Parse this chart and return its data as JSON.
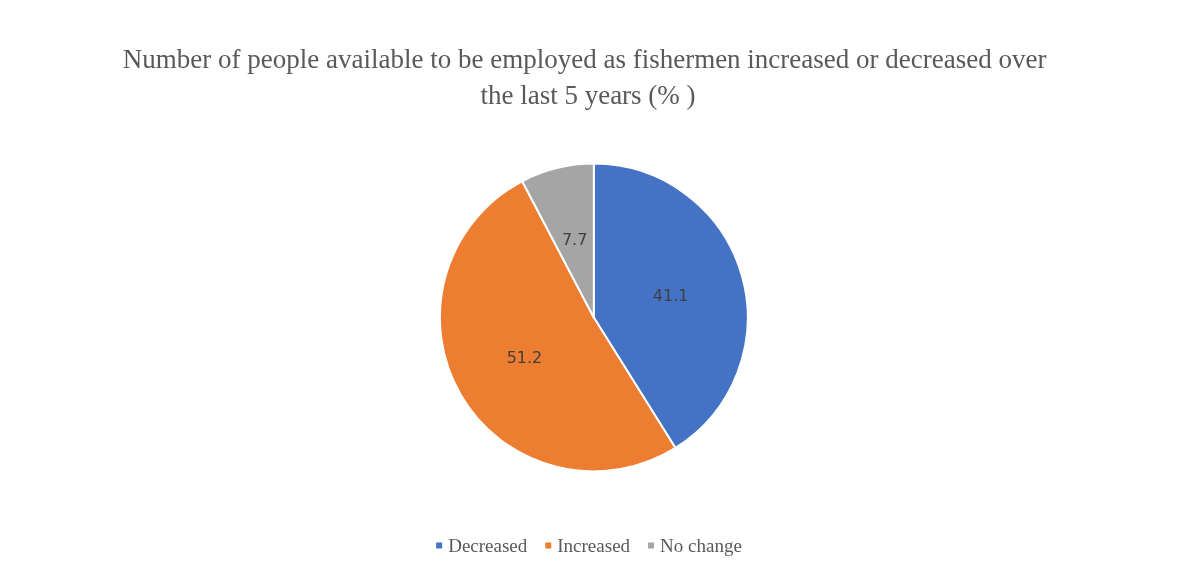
{
  "chart_data": {
    "type": "pie",
    "title": "Number of people available to be employed as fishermen increased or decreased over the last 5 years (% )",
    "categories": [
      "Decreased",
      "Increased",
      "No change"
    ],
    "values": [
      41.1,
      51.2,
      7.7
    ],
    "colors": [
      "#4472c4",
      "#ed7d31",
      "#a5a5a5"
    ],
    "data_labels": true,
    "legend": "bottom"
  }
}
